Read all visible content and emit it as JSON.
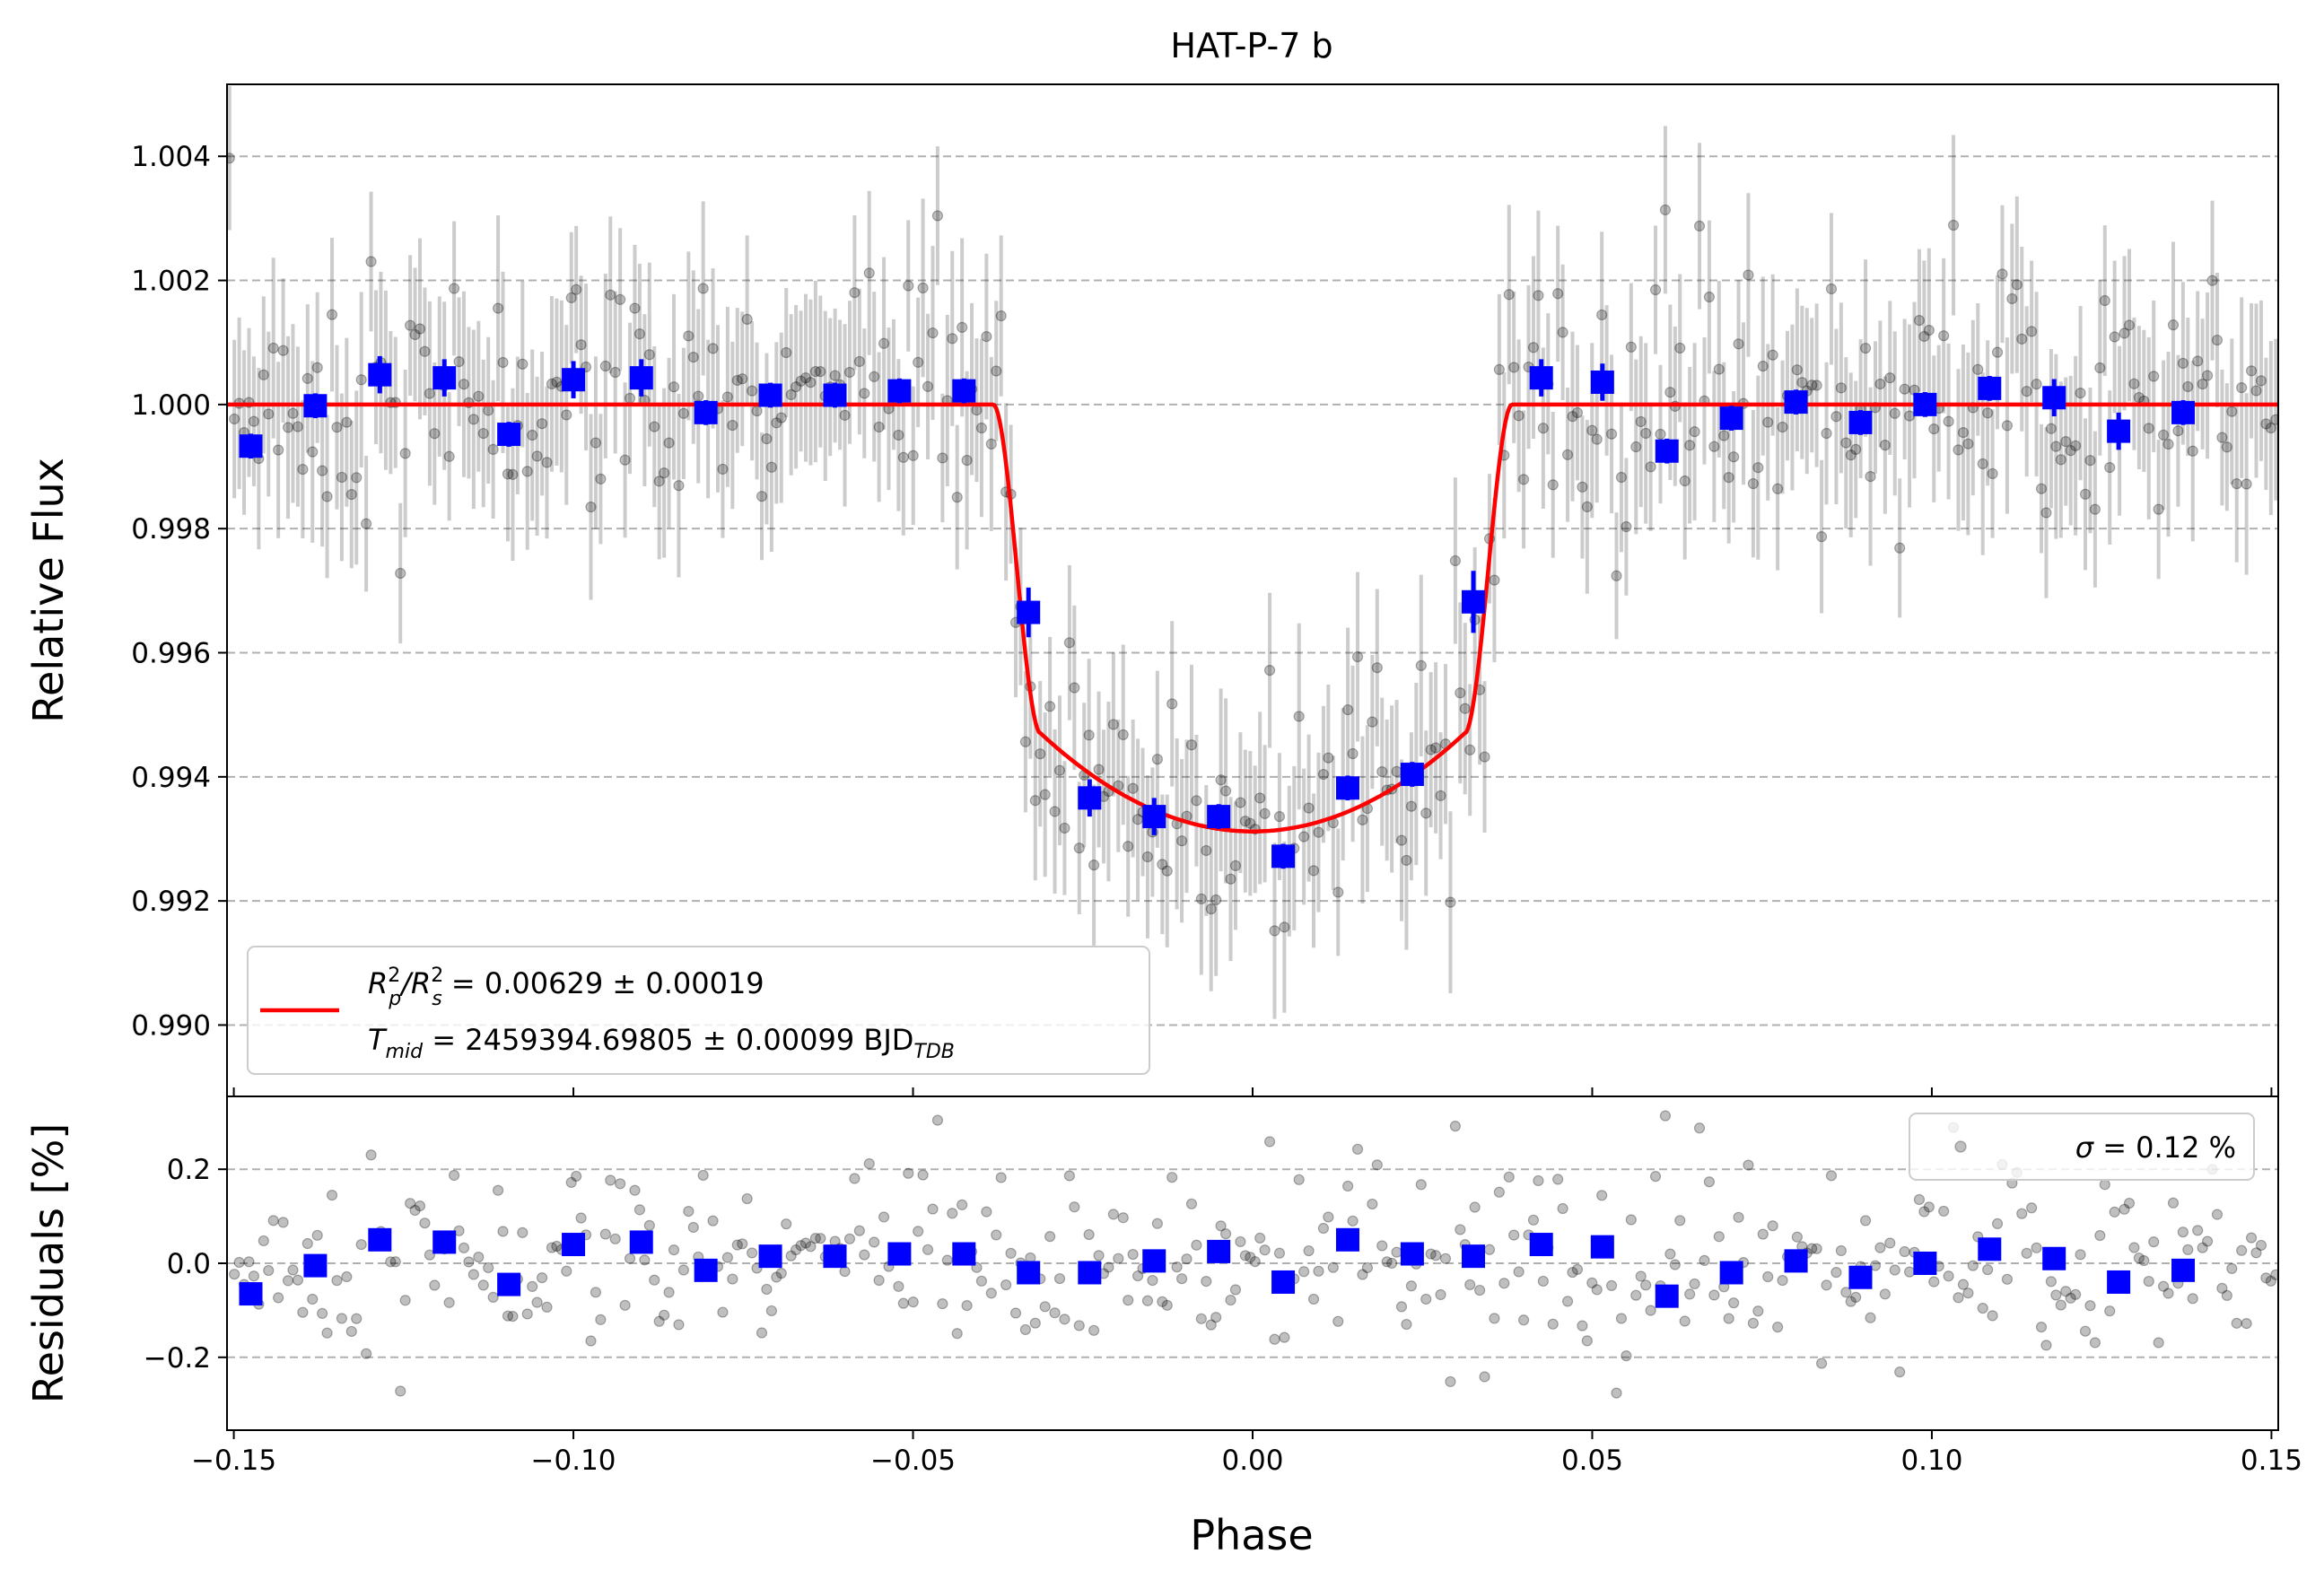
{
  "chart_data": [
    {
      "type": "scatter",
      "title": "HAT-P-7 b",
      "xlabel": "",
      "ylabel": "Relative Flux",
      "xlim": [
        -0.151,
        0.151
      ],
      "ylim": [
        0.98885,
        1.00516
      ],
      "grid": "y-dashed",
      "yticks": [
        0.99,
        0.992,
        0.994,
        0.996,
        0.998,
        1.0,
        1.002,
        1.004
      ],
      "ytick_labels": [
        "0.990",
        "0.992",
        "0.994",
        "0.996",
        "0.998",
        "1.000",
        "1.002",
        "1.004"
      ],
      "legend_position": "lower-left",
      "legend": {
        "line1_parts": [
          "R",
          "p",
          "2",
          "/R",
          "s",
          "2",
          " = 0.00629 ± 0.00019"
        ],
        "line2_parts": [
          "T",
          "mid",
          " = 2459394.69805 ± 0.00099 BJD",
          "TDB"
        ]
      },
      "model": {
        "name": "transit model",
        "color": "#ff0000",
        "depth": 0.00629,
        "x_contact": [
          -0.0382,
          -0.0312,
          0.0312,
          0.0382
        ],
        "baseline": 1.0,
        "ingress_flux": 0.9947,
        "center_flux": 0.99312
      },
      "binned": {
        "color": "#0000ff",
        "x": [
          -0.1475,
          -0.138,
          -0.1285,
          -0.119,
          -0.1095,
          -0.1,
          -0.09,
          -0.0805,
          -0.071,
          -0.0615,
          -0.052,
          -0.0425,
          -0.033,
          -0.024,
          -0.0145,
          -0.005,
          0.0045,
          0.014,
          0.0235,
          0.0325,
          0.0425,
          0.0515,
          0.061,
          0.0705,
          0.08,
          0.0895,
          0.099,
          0.1085,
          0.118,
          0.1275,
          0.137
        ],
        "y": [
          0.99933,
          0.99998,
          1.00048,
          1.00043,
          0.99952,
          1.0004,
          1.00043,
          0.99987,
          1.00015,
          1.00015,
          1.00022,
          1.00022,
          0.99665,
          0.99366,
          0.99336,
          0.99336,
          0.99272,
          0.99382,
          0.99404,
          0.99682,
          1.00043,
          1.00036,
          0.99925,
          0.99978,
          1.00004,
          0.99971,
          1.0,
          1.00026,
          1.00011,
          0.99957,
          0.99987
        ],
        "yerr": [
          0.0002,
          0.0002,
          0.0003,
          0.0003,
          0.0002,
          0.0003,
          0.0003,
          0.0002,
          0.0002,
          0.0002,
          0.0002,
          0.0002,
          0.0004,
          0.0003,
          0.0003,
          0.0002,
          0.0002,
          0.0002,
          0.0002,
          0.0005,
          0.0003,
          0.0003,
          0.0002,
          0.0002,
          0.0002,
          0.0002,
          0.0002,
          0.0002,
          0.0003,
          0.0003,
          0.0002
        ]
      },
      "raw": {
        "name": "individual measurements",
        "color": "#000000",
        "n_points": 420,
        "scatter_sigma": 0.0012,
        "error_bar_sigma": 0.0012
      }
    },
    {
      "type": "scatter",
      "xlabel": "Phase",
      "ylabel": "Residuals [%]",
      "xlim": [
        -0.151,
        0.151
      ],
      "ylim": [
        -0.355,
        0.355
      ],
      "grid": "y-dashed",
      "yticks": [
        -0.2,
        0.0,
        0.2
      ],
      "ytick_labels": [
        "−0.2",
        "0.0",
        "0.2"
      ],
      "xticks": [
        -0.15,
        -0.1,
        -0.05,
        0.0,
        0.05,
        0.1,
        0.15
      ],
      "xtick_labels": [
        "−0.15",
        "−0.10",
        "−0.05",
        "0.00",
        "0.05",
        "0.10",
        "0.15"
      ],
      "legend_position": "upper-right",
      "legend": {
        "sigma_symbol": "σ",
        "label": " = 0.12 %"
      },
      "binned": {
        "color": "#0000ff",
        "x": [
          -0.1475,
          -0.138,
          -0.1285,
          -0.119,
          -0.1095,
          -0.1,
          -0.09,
          -0.0805,
          -0.071,
          -0.0615,
          -0.052,
          -0.0425,
          -0.033,
          -0.024,
          -0.0145,
          -0.005,
          0.0045,
          0.014,
          0.0235,
          0.0325,
          0.0425,
          0.0515,
          0.061,
          0.0705,
          0.08,
          0.0895,
          0.099,
          0.1085,
          0.118,
          0.1275,
          0.137
        ],
        "y": [
          -0.065,
          -0.005,
          0.05,
          0.045,
          -0.045,
          0.04,
          0.045,
          -0.015,
          0.015,
          0.015,
          0.02,
          0.02,
          -0.02,
          -0.02,
          0.005,
          0.025,
          -0.04,
          0.05,
          0.02,
          0.015,
          0.04,
          0.035,
          -0.07,
          -0.02,
          0.005,
          -0.03,
          0.0,
          0.03,
          0.01,
          -0.04,
          -0.015
        ]
      },
      "raw": {
        "color": "#000000",
        "n_points": 420,
        "scatter_sigma": 0.12
      }
    }
  ]
}
